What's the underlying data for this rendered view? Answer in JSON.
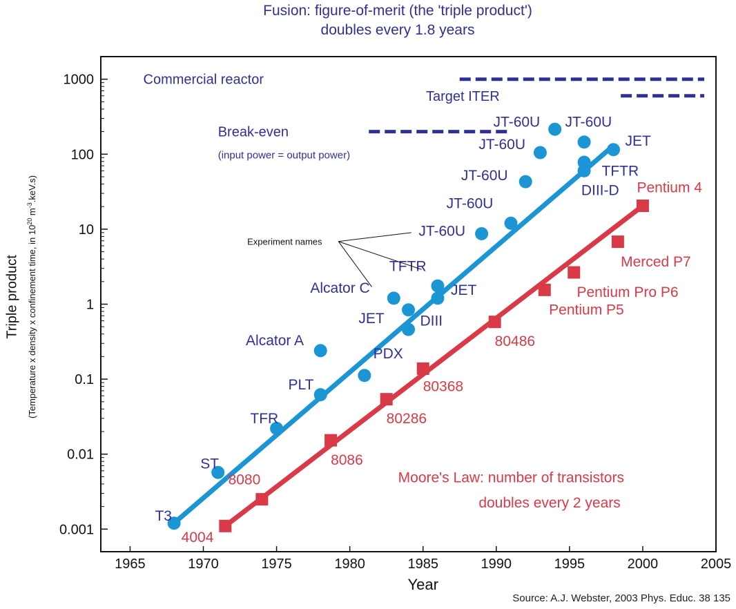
{
  "title_line1": "Fusion: figure-of-merit (the 'triple product')",
  "title_line2": "doubles every 1.8 years",
  "source": "Source: A.J. Webster, 2003 Phys. Educ. 38 135",
  "colors": {
    "fusion": "#1b95d3",
    "moore": "#d93a47",
    "navy": "#2e3192",
    "fusion_label": "#2e3192"
  },
  "chart_data": {
    "type": "scatter",
    "title": "Fusion: figure-of-merit (the 'triple product') doubles every 1.8 years",
    "xlabel": "Year",
    "ylabel": "Triple product",
    "ylabel_sub_pre": "(Temperature x density x confinement time, in 10",
    "ylabel_sub_exp": "20",
    "ylabel_sub_mid": " m",
    "ylabel_sub_exp2": "-3",
    "ylabel_sub_post": ".keV.s)",
    "x_scale": "linear",
    "y_scale": "log",
    "xlim": [
      1963,
      2005
    ],
    "ylim": [
      0.0005,
      2000
    ],
    "x_ticks": [
      1965,
      1970,
      1975,
      1980,
      1985,
      1990,
      1995,
      2000,
      2005
    ],
    "y_ticks": [
      {
        "value": 1000,
        "label": "1000"
      },
      {
        "value": 100,
        "label": "100"
      },
      {
        "value": 10,
        "label": "10"
      },
      {
        "value": 1,
        "label": "1"
      },
      {
        "value": 0.1,
        "label": "0.1"
      },
      {
        "value": 0.01,
        "label": "0.01"
      },
      {
        "value": 0.001,
        "label": "0.001"
      }
    ],
    "grid": false,
    "series": [
      {
        "marker": "circle",
        "color": "#1b95d3",
        "label_color": "#2e3192",
        "trend": [
          [
            1968,
            0.0012
          ],
          [
            1998,
            130
          ]
        ],
        "points": [
          {
            "x": 1968,
            "y": 0.0012,
            "label": "T3",
            "lx": -1.3,
            "ly": 0.0015
          },
          {
            "x": 1971,
            "y": 0.0057,
            "label": "ST",
            "lx": -1.2,
            "ly": 0.0075
          },
          {
            "x": 1975,
            "y": 0.022,
            "label": "TFR",
            "lx": -1.8,
            "ly": 0.03
          },
          {
            "x": 1978,
            "y": 0.062,
            "label": "PLT",
            "lx": -2.2,
            "ly": 0.085
          },
          {
            "x": 1978,
            "y": 0.24,
            "label": "Alcator A",
            "lx": -5.1,
            "ly": 0.33
          },
          {
            "x": 1981,
            "y": 0.112,
            "label": "PDX",
            "lx": 0.6,
            "ly": 0.22
          },
          {
            "x": 1983,
            "y": 1.2,
            "label": "Alcator C",
            "lx": -5.7,
            "ly": 1.65
          },
          {
            "x": 1984,
            "y": 0.84,
            "label": "JET",
            "lx": -3.4,
            "ly": 0.65
          },
          {
            "x": 1984,
            "y": 0.46,
            "label": "DIII",
            "lx": 0.8,
            "ly": 0.6
          },
          {
            "x": 1986,
            "y": 1.75,
            "label": "TFTR",
            "lx": -3.3,
            "ly": 3.2
          },
          {
            "x": 1986,
            "y": 1.2,
            "label": "JET",
            "lx": 0.9,
            "ly": 1.55
          },
          {
            "x": 1989,
            "y": 8.7,
            "label": "JT-60U",
            "lx": -4.3,
            "ly": 9.5
          },
          {
            "x": 1991,
            "y": 12,
            "label": "JT-60U",
            "lx": -4.4,
            "ly": 22
          },
          {
            "x": 1992,
            "y": 43,
            "label": "JT-60U",
            "lx": -4.4,
            "ly": 52
          },
          {
            "x": 1993,
            "y": 105,
            "label": "JT-60U",
            "lx": -4.2,
            "ly": 135
          },
          {
            "x": 1994,
            "y": 215,
            "label": "JT-60U",
            "lx": -4.2,
            "ly": 270
          },
          {
            "x": 1996,
            "y": 145,
            "label": "JT-60U",
            "lx": -1.3,
            "ly": 270
          },
          {
            "x": 1996,
            "y": 78,
            "label": "TFTR",
            "lx": 1.2,
            "ly": 60
          },
          {
            "x": 1996,
            "y": 60,
            "label": "DIII-D",
            "lx": -0.2,
            "ly": 33
          },
          {
            "x": 1998,
            "y": 115,
            "label": "JET",
            "lx": 0.8,
            "ly": 150
          }
        ]
      },
      {
        "marker": "square",
        "color": "#d93a47",
        "label_color": "#d93a47",
        "trend": [
          [
            1971.5,
            0.0011
          ],
          [
            2000,
            20.5
          ]
        ],
        "points": [
          {
            "x": 1971.5,
            "y": 0.0011,
            "label": "4004",
            "lx": -3.0,
            "ly": 0.00078
          },
          {
            "x": 1974,
            "y": 0.0025,
            "label": "8080",
            "lx": -2.3,
            "ly": 0.0046
          },
          {
            "x": 1978.7,
            "y": 0.0153,
            "label": "8086",
            "lx": 0.0,
            "ly": 0.0084
          },
          {
            "x": 1982.5,
            "y": 0.054,
            "label": "80286",
            "lx": 0.0,
            "ly": 0.03
          },
          {
            "x": 1985,
            "y": 0.138,
            "label": "80368",
            "lx": 0.0,
            "ly": 0.08
          },
          {
            "x": 1989.9,
            "y": 0.58,
            "label": "80486",
            "lx": 0.0,
            "ly": 0.32
          },
          {
            "x": 1993.3,
            "y": 1.55,
            "label": "Pentium P5",
            "lx": 0.3,
            "ly": 0.84
          },
          {
            "x": 1995.3,
            "y": 2.65,
            "label": "Pentium Pro P6",
            "lx": 0.2,
            "ly": 1.45
          },
          {
            "x": 1998.3,
            "y": 6.8,
            "label": "Merced P7",
            "lx": 0.2,
            "ly": 3.7
          },
          {
            "x": 2000,
            "y": 20.5,
            "label": "Pentium 4",
            "lx": -0.4,
            "ly": 36
          }
        ]
      }
    ],
    "reference_lines": [
      {
        "label": "Commercial reactor",
        "y": 1000,
        "x_start": 1987.5,
        "x_end": 2004.2,
        "lx": 1965.9
      },
      {
        "label": "Target ITER",
        "y": 600,
        "x_start": 1998.5,
        "x_end": 2004.2,
        "lx": 1985.2
      },
      {
        "label": "Break-even",
        "y": 200,
        "x_start": 1981.3,
        "x_end": 1991.0,
        "lx": 1971.0
      }
    ],
    "annotations": [
      {
        "id": "breakeven-note",
        "text": "(input power = output power)",
        "x": 1971.0,
        "y": 100
      },
      {
        "id": "experiment-names",
        "text": "Experiment names",
        "x": 1973.0,
        "y": 7.0
      },
      {
        "id": "moore-line1",
        "text": "Moore's Law: number of transistors",
        "x": 1983.3,
        "y": 0.0048
      },
      {
        "id": "moore-line2",
        "text": "doubles every 2 years",
        "x": 1988.8,
        "y": 0.0022
      }
    ]
  }
}
